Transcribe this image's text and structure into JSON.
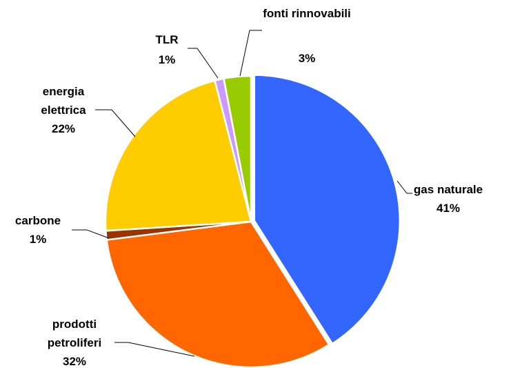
{
  "chart_data": {
    "type": "pie",
    "categories": [
      "gas naturale",
      "prodotti petroliferi",
      "carbone",
      "energia elettrica",
      "TLR",
      "fonti rinnovabili"
    ],
    "values": [
      41,
      32,
      1,
      22,
      1,
      3
    ],
    "value_labels": [
      "41%",
      "32%",
      "1%",
      "22%",
      "1%",
      "3%"
    ],
    "colors": [
      "#3366ff",
      "#ff6600",
      "#993300",
      "#ffcc00",
      "#cc99ff",
      "#99cc00"
    ]
  }
}
